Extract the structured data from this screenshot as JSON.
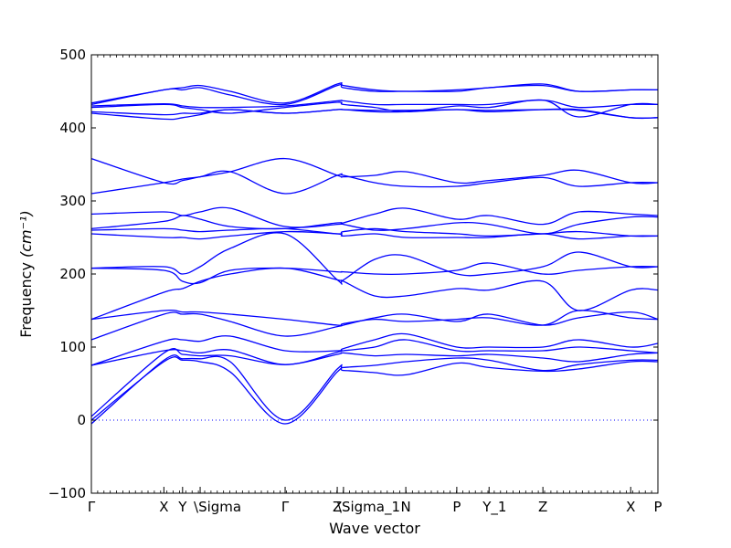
{
  "chart_data": {
    "type": "line",
    "title": "",
    "xlabel": "Wave vector",
    "ylabel": "Frequency",
    "ylabel_unit": "(cm⁻¹)",
    "ylim": [
      -100,
      500
    ],
    "xlim": [
      0,
      1
    ],
    "yticks": [
      -100,
      0,
      100,
      200,
      300,
      400,
      500
    ],
    "zero_line": {
      "y": 0,
      "style": "dotted"
    },
    "grid": false,
    "legend": "none",
    "colors": {
      "bands": "#0000ff",
      "frame": "#000000"
    },
    "high_symmetry_points": [
      {
        "label": "Γ",
        "x": 0.0
      },
      {
        "label": "X",
        "x": 0.128
      },
      {
        "label": "Y",
        "x": 0.161
      },
      {
        "label": "\\Sigma",
        "x": 0.192
      },
      {
        "label": "Γ",
        "x": 0.342
      },
      {
        "label": "Z",
        "x": 0.434
      },
      {
        "label": "\\Sigma_1",
        "x": 0.445
      },
      {
        "label": "N",
        "x": 0.555
      },
      {
        "label": "P",
        "x": 0.645
      },
      {
        "label": "Y_1",
        "x": 0.702
      },
      {
        "label": "Z",
        "x": 0.797
      },
      {
        "label": "X",
        "x": 0.952
      },
      {
        "label": "P",
        "x": 1.0
      }
    ],
    "band_x": [
      0.0,
      0.128,
      0.161,
      0.192,
      0.245,
      0.342,
      0.434,
      0.445,
      0.5,
      0.555,
      0.645,
      0.702,
      0.797,
      0.86,
      0.952,
      1.0
    ],
    "series": [
      {
        "values": [
          0,
          80,
          82,
          80,
          66,
          -5,
          66,
          68,
          65,
          62,
          78,
          72,
          67,
          70,
          80,
          80
        ]
      },
      {
        "values": [
          -5,
          82,
          84,
          84,
          80,
          0,
          70,
          72,
          75,
          80,
          85,
          82,
          68,
          76,
          82,
          82
        ]
      },
      {
        "values": [
          5,
          92,
          90,
          88,
          88,
          76,
          90,
          92,
          88,
          90,
          88,
          90,
          85,
          80,
          90,
          92
        ]
      },
      {
        "values": [
          75,
          95,
          95,
          92,
          96,
          76,
          93,
          95,
          100,
          110,
          95,
          95,
          95,
          100,
          95,
          92
        ]
      },
      {
        "values": [
          75,
          108,
          110,
          108,
          115,
          95,
          95,
          98,
          110,
          118,
          100,
          100,
          100,
          110,
          100,
          105
        ]
      },
      {
        "values": [
          110,
          145,
          145,
          145,
          135,
          115,
          128,
          130,
          140,
          145,
          135,
          145,
          130,
          140,
          148,
          138
        ]
      },
      {
        "values": [
          138,
          150,
          148,
          148,
          145,
          138,
          130,
          132,
          138,
          135,
          138,
          140,
          130,
          150,
          140,
          138
        ]
      },
      {
        "values": [
          138,
          175,
          180,
          190,
          200,
          208,
          192,
          190,
          170,
          170,
          180,
          178,
          190,
          150,
          178,
          178
        ]
      },
      {
        "values": [
          208,
          205,
          190,
          188,
          205,
          208,
          203,
          203,
          200,
          200,
          205,
          215,
          200,
          205,
          210,
          210
        ]
      },
      {
        "values": [
          208,
          210,
          200,
          210,
          235,
          255,
          192,
          192,
          220,
          225,
          200,
          200,
          210,
          230,
          210,
          210
        ]
      },
      {
        "values": [
          255,
          250,
          250,
          248,
          252,
          258,
          255,
          252,
          255,
          250,
          250,
          250,
          255,
          248,
          252,
          252
        ]
      },
      {
        "values": [
          260,
          262,
          260,
          258,
          260,
          262,
          255,
          258,
          262,
          258,
          255,
          252,
          255,
          258,
          252,
          252
        ]
      },
      {
        "values": [
          262,
          272,
          280,
          275,
          265,
          262,
          270,
          268,
          260,
          262,
          270,
          268,
          255,
          268,
          278,
          278
        ]
      },
      {
        "values": [
          282,
          285,
          280,
          285,
          290,
          265,
          268,
          270,
          282,
          290,
          275,
          280,
          268,
          285,
          282,
          280
        ]
      },
      {
        "values": [
          310,
          325,
          330,
          333,
          340,
          310,
          335,
          335,
          325,
          320,
          320,
          325,
          332,
          320,
          325,
          325
        ]
      },
      {
        "values": [
          358,
          325,
          328,
          333,
          340,
          358,
          335,
          333,
          335,
          340,
          325,
          328,
          335,
          342,
          325,
          325
        ]
      },
      {
        "values": [
          420,
          412,
          414,
          418,
          425,
          420,
          425,
          425,
          422,
          422,
          425,
          422,
          425,
          425,
          414,
          414
        ]
      },
      {
        "values": [
          422,
          418,
          420,
          420,
          425,
          420,
          425,
          425,
          424,
          424,
          425,
          424,
          425,
          424,
          414,
          414
        ]
      },
      {
        "values": [
          428,
          432,
          428,
          425,
          420,
          428,
          435,
          432,
          428,
          422,
          430,
          428,
          438,
          415,
          432,
          432
        ]
      },
      {
        "values": [
          430,
          433,
          430,
          428,
          428,
          430,
          437,
          437,
          432,
          432,
          432,
          432,
          438,
          428,
          432,
          432
        ]
      },
      {
        "values": [
          432,
          452,
          452,
          455,
          445,
          432,
          458,
          455,
          450,
          450,
          450,
          455,
          458,
          450,
          452,
          452
        ]
      },
      {
        "values": [
          434,
          452,
          455,
          458,
          450,
          434,
          460,
          458,
          452,
          450,
          452,
          455,
          460,
          450,
          452,
          452
        ]
      }
    ]
  }
}
